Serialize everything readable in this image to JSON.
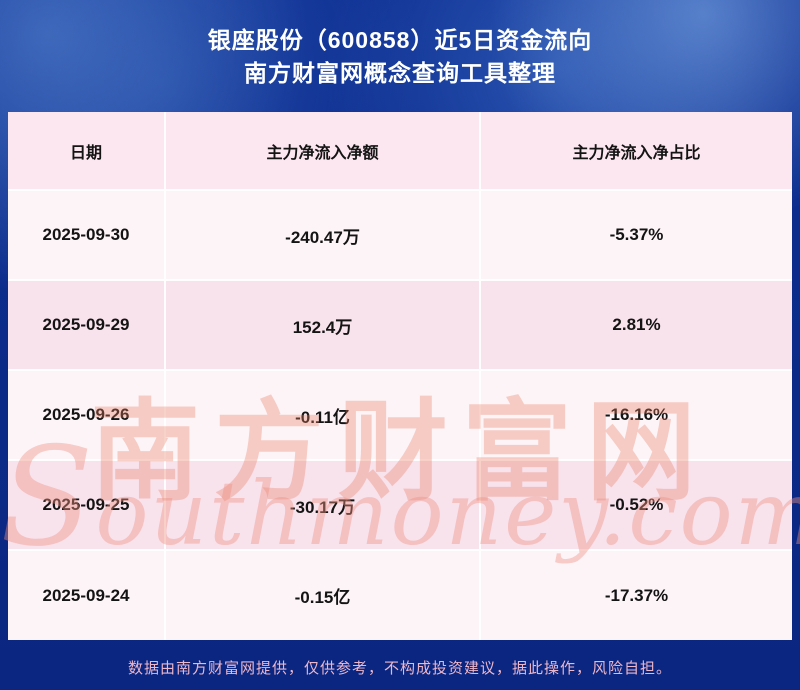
{
  "title": {
    "line1": "银座股份（600858）近5日资金流向",
    "line2": "南方财富网概念查询工具整理"
  },
  "chart_data": {
    "type": "table",
    "title": "银座股份（600858）近5日资金流向",
    "subtitle": "南方财富网概念查询工具整理",
    "columns": [
      "日期",
      "主力净流入净额",
      "主力净流入净占比"
    ],
    "rows": [
      [
        "2025-09-30",
        "-240.47万",
        "-5.37%"
      ],
      [
        "2025-09-29",
        "152.4万",
        "2.81%"
      ],
      [
        "2025-09-26",
        "-0.11亿",
        "-16.16%"
      ],
      [
        "2025-09-25",
        "-30.17万",
        "-0.52%"
      ],
      [
        "2025-09-24",
        "-0.15亿",
        "-17.37%"
      ]
    ]
  },
  "watermark": {
    "cn": "南方财富网",
    "en": "Southmoney.com"
  },
  "footer": {
    "text": "数据由南方财富网提供，仅供参考，不构成投资建议，据此操作，风险自担。"
  },
  "colors": {
    "background_blue": "#0b2a88",
    "header_pink": "#fce7f0",
    "row_pink": "#f8e2ec",
    "row_light": "#fdf4f8",
    "table_text": "#141414",
    "title_text": "#ffffff",
    "footer_text": "#edb7cb",
    "watermark": "#e97a60"
  }
}
